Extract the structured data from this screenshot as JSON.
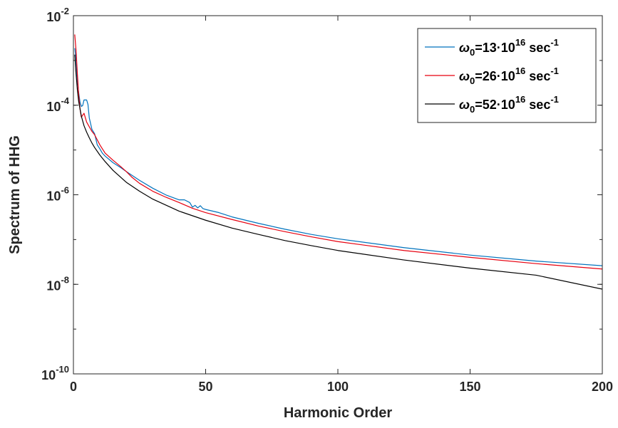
{
  "chart_data": {
    "type": "line",
    "title": "",
    "xlabel": "Harmonic Order",
    "ylabel": "Spectrum of HHG",
    "xlim": [
      0,
      200
    ],
    "ylim": [
      1e-10,
      0.01
    ],
    "y_scale": "log",
    "grid": false,
    "legend_position": "top-right",
    "x_ticks": [
      0,
      50,
      100,
      150,
      200
    ],
    "x_tick_labels": [
      "0",
      "50",
      "100",
      "150",
      "200"
    ],
    "y_ticks": [
      1e-10,
      1e-08,
      1e-06,
      0.0001,
      0.01
    ],
    "y_tick_labels": [
      {
        "base": "10",
        "exp": "-10"
      },
      {
        "base": "10",
        "exp": "-8"
      },
      {
        "base": "10",
        "exp": "-6"
      },
      {
        "base": "10",
        "exp": "-4"
      },
      {
        "base": "10",
        "exp": "-2"
      }
    ],
    "series": [
      {
        "name": "ω0=13·10^16 sec^-1",
        "legend": {
          "symbol": "ω",
          "sub": "0",
          "coef": "=13·10",
          "exp1": "16",
          "unit": " sec",
          "exp2": "-1"
        },
        "color": "#0072BD",
        "points": [
          [
            0.5,
            0.00188
          ],
          [
            1,
            0.00106
          ],
          [
            1.5,
            0.00035
          ],
          [
            2,
            0.00019
          ],
          [
            2.5,
            0.000117
          ],
          [
            3,
            9.4e-05
          ],
          [
            3.5,
            9.8e-05
          ],
          [
            4,
            0.000131
          ],
          [
            5,
            0.000131
          ],
          [
            5.5,
            0.000104
          ],
          [
            6,
            5.2e-05
          ],
          [
            7,
            2.89e-05
          ],
          [
            8,
            2.32e-05
          ],
          [
            9,
            1.31e-05
          ],
          [
            10,
            1.06e-05
          ],
          [
            11,
            8.4e-06
          ],
          [
            12,
            7.3e-06
          ],
          [
            15,
            5.2e-06
          ],
          [
            18,
            4e-06
          ],
          [
            20,
            3.3e-06
          ],
          [
            25,
            2.1e-06
          ],
          [
            30,
            1.4e-06
          ],
          [
            35,
            9.9e-07
          ],
          [
            40,
            7.7e-07
          ],
          [
            42,
            7.7e-07
          ],
          [
            44,
            6.7e-07
          ],
          [
            45,
            5.3e-07
          ],
          [
            46,
            5.8e-07
          ],
          [
            47,
            5.1e-07
          ],
          [
            48,
            5.7e-07
          ],
          [
            49,
            4.9e-07
          ],
          [
            50,
            4.7e-07
          ],
          [
            55,
            4e-07
          ],
          [
            60,
            3.2e-07
          ],
          [
            70,
            2.3e-07
          ],
          [
            80,
            1.7e-07
          ],
          [
            90,
            1.3e-07
          ],
          [
            100,
            1.04e-07
          ],
          [
            125,
            6.6e-08
          ],
          [
            150,
            4.5e-08
          ],
          [
            175,
            3.3e-08
          ],
          [
            200,
            2.6e-08
          ]
        ]
      },
      {
        "name": "ω0=26·10^16 sec^-1",
        "legend": {
          "symbol": "ω",
          "sub": "0",
          "coef": "=26·10",
          "exp1": "16",
          "unit": " sec",
          "exp2": "-1"
        },
        "color": "#E6000F",
        "points": [
          [
            0.5,
            0.0038
          ],
          [
            1,
            0.00167
          ],
          [
            1.5,
            0.0005
          ],
          [
            2,
            0.00017
          ],
          [
            2.5,
            8.2e-05
          ],
          [
            3,
            5.4e-05
          ],
          [
            4,
            6.6e-05
          ],
          [
            5,
            4.2e-05
          ],
          [
            6,
            3.3e-05
          ],
          [
            7,
            2.6e-05
          ],
          [
            8,
            2.2e-05
          ],
          [
            10,
            1.3e-05
          ],
          [
            12,
            8.5e-06
          ],
          [
            15,
            5.9e-06
          ],
          [
            18,
            4.2e-06
          ],
          [
            20,
            3.3e-06
          ],
          [
            22,
            2.5e-06
          ],
          [
            25,
            1.8e-06
          ],
          [
            30,
            1.2e-06
          ],
          [
            35,
            8.8e-07
          ],
          [
            40,
            6.7e-07
          ],
          [
            45,
            5e-07
          ],
          [
            50,
            4e-07
          ],
          [
            60,
            2.8e-07
          ],
          [
            70,
            2e-07
          ],
          [
            80,
            1.5e-07
          ],
          [
            90,
            1.15e-07
          ],
          [
            100,
            9e-08
          ],
          [
            125,
            5.7e-08
          ],
          [
            150,
            4e-08
          ],
          [
            175,
            2.9e-08
          ],
          [
            200,
            2.2e-08
          ]
        ]
      },
      {
        "name": "ω0=52·10^16 sec^-1",
        "legend": {
          "symbol": "ω",
          "sub": "0",
          "coef": "=52·10",
          "exp1": "16",
          "unit": " sec",
          "exp2": "-1"
        },
        "color": "#000000",
        "points": [
          [
            0.5,
            0.00135
          ],
          [
            1,
            0.0005
          ],
          [
            1.5,
            0.00022
          ],
          [
            2,
            0.00012
          ],
          [
            3,
            5.7e-05
          ],
          [
            4,
            3.5e-05
          ],
          [
            5,
            2.5e-05
          ],
          [
            6,
            1.87e-05
          ],
          [
            7,
            1.43e-05
          ],
          [
            8,
            1.14e-05
          ],
          [
            10,
            7.7e-06
          ],
          [
            12,
            5.5e-06
          ],
          [
            15,
            3.5e-06
          ],
          [
            20,
            1.9e-06
          ],
          [
            25,
            1.2e-06
          ],
          [
            30,
            8e-07
          ],
          [
            40,
            4.3e-07
          ],
          [
            50,
            2.7e-07
          ],
          [
            60,
            1.8e-07
          ],
          [
            70,
            1.3e-07
          ],
          [
            80,
            9.5e-08
          ],
          [
            90,
            7.3e-08
          ],
          [
            100,
            5.7e-08
          ],
          [
            125,
            3.5e-08
          ],
          [
            150,
            2.3e-08
          ],
          [
            175,
            1.6e-08
          ],
          [
            200,
            7.8e-09
          ]
        ]
      }
    ]
  }
}
